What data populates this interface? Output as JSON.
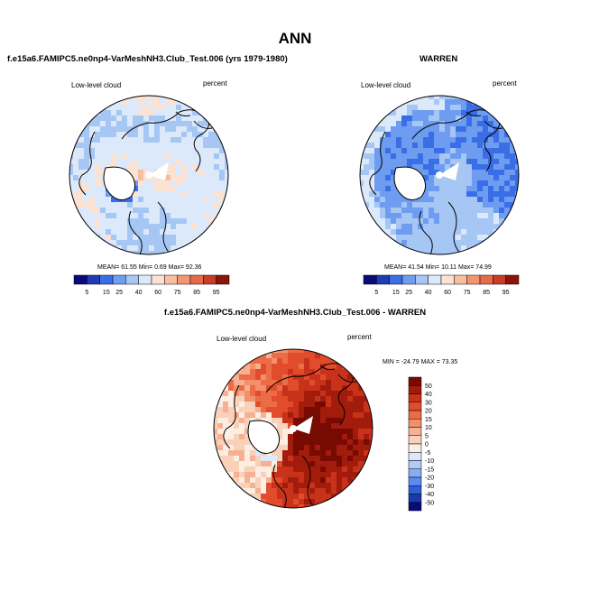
{
  "title": "ANN",
  "colors": {
    "palette": [
      "#0a0a7a",
      "#1e3cb4",
      "#3a6ee6",
      "#6e9cf0",
      "#a6c6f4",
      "#dce9fa",
      "#fbe2d2",
      "#f8bea0",
      "#f29670",
      "#e46a48",
      "#c83c28",
      "#8c1408"
    ],
    "diff_palette": [
      "#0a0a7a",
      "#1c3aae",
      "#2f5fd8",
      "#5b8ceb",
      "#86acf2",
      "#b0ccf6",
      "#dde9fb",
      "#fdeee4",
      "#f9d0b8",
      "#f6b092",
      "#f2906c",
      "#ec6c48",
      "#e04c2c",
      "#c8321a",
      "#a21c0c",
      "#780a04"
    ],
    "land_white": "#ffffff",
    "coast": "#000000"
  },
  "panels": [
    {
      "id": "test",
      "title": "f.e15a6.FAMIPC5.ne0np4-VarMeshNH3.Club_Test.006 (yrs 1979-1980)",
      "left_label": "Low-level cloud",
      "right_label": "percent",
      "stats": {
        "mean_label": "MEAN=",
        "mean": "61.55",
        "min_label": "Min=",
        "min": "0.69",
        "max_label": "Max=",
        "max": "92.36"
      },
      "colorbar_labels": [
        "5",
        "15",
        "25",
        "40",
        "60",
        "75",
        "85",
        "95"
      ]
    },
    {
      "id": "obs",
      "title": "WARREN",
      "left_label": "Low-level cloud",
      "right_label": "percent",
      "stats": {
        "mean_label": "MEAN=",
        "mean": "41.54",
        "min_label": "Min=",
        "min": "10.11",
        "max_label": "Max=",
        "max": "74.99"
      },
      "colorbar_labels": [
        "5",
        "15",
        "25",
        "40",
        "60",
        "75",
        "85",
        "95"
      ]
    },
    {
      "id": "diff",
      "title": "f.e15a6.FAMIPC5.ne0np4-VarMeshNH3.Club_Test.006 - WARREN",
      "left_label": "Low-level cloud",
      "right_label": "percent",
      "stats_text": "MIN = -24.79 MAX = 73.35",
      "colorbar_labels": [
        "50",
        "40",
        "30",
        "20",
        "15",
        "10",
        "5",
        "0",
        "-5",
        "-10",
        "-15",
        "-20",
        "-30",
        "-40",
        "-50"
      ]
    }
  ],
  "chart_data": [
    {
      "type": "heatmap",
      "projection": "north-polar-stereographic",
      "title": "f.e15a6.FAMIPC5.ne0np4-VarMeshNH3.Club_Test.006 (yrs 1979-1980)",
      "variable": "Low-level cloud",
      "units": "percent",
      "mean": 61.55,
      "min": 0.69,
      "max": 92.36,
      "levels": [
        5,
        15,
        25,
        40,
        60,
        75,
        85,
        95
      ]
    },
    {
      "type": "heatmap",
      "projection": "north-polar-stereographic",
      "title": "WARREN",
      "variable": "Low-level cloud",
      "units": "percent",
      "mean": 41.54,
      "min": 10.11,
      "max": 74.99,
      "levels": [
        5,
        15,
        25,
        40,
        60,
        75,
        85,
        95
      ]
    },
    {
      "type": "heatmap",
      "projection": "north-polar-stereographic",
      "title": "f.e15a6.FAMIPC5.ne0np4-VarMeshNH3.Club_Test.006 - WARREN",
      "variable": "Low-level cloud",
      "units": "percent",
      "min": -24.79,
      "max": 73.35,
      "levels": [
        -50,
        -40,
        -30,
        -20,
        -15,
        -10,
        -5,
        0,
        5,
        10,
        15,
        20,
        30,
        40,
        50
      ]
    }
  ]
}
